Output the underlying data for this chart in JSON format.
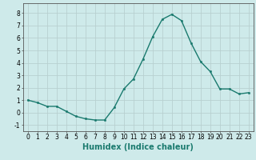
{
  "x": [
    0,
    1,
    2,
    3,
    4,
    5,
    6,
    7,
    8,
    9,
    10,
    11,
    12,
    13,
    14,
    15,
    16,
    17,
    18,
    19,
    20,
    21,
    22,
    23
  ],
  "y": [
    1.0,
    0.8,
    0.5,
    0.5,
    0.1,
    -0.3,
    -0.5,
    -0.6,
    -0.6,
    0.4,
    1.9,
    2.7,
    4.3,
    6.1,
    7.5,
    7.9,
    7.4,
    5.6,
    4.1,
    3.3,
    1.9,
    1.9,
    1.5,
    1.6
  ],
  "line_color": "#1a7a6e",
  "marker": "o",
  "markersize": 1.8,
  "linewidth": 1.0,
  "xlabel": "Humidex (Indice chaleur)",
  "xlabel_fontsize": 7,
  "yticks": [
    -1,
    0,
    1,
    2,
    3,
    4,
    5,
    6,
    7,
    8
  ],
  "xticks": [
    0,
    1,
    2,
    3,
    4,
    5,
    6,
    7,
    8,
    9,
    10,
    11,
    12,
    13,
    14,
    15,
    16,
    17,
    18,
    19,
    20,
    21,
    22,
    23
  ],
  "xlim": [
    -0.5,
    23.5
  ],
  "ylim": [
    -1.5,
    8.8
  ],
  "background_color": "#ceeaea",
  "grid_color": "#b8d0d0",
  "tick_fontsize": 5.5
}
